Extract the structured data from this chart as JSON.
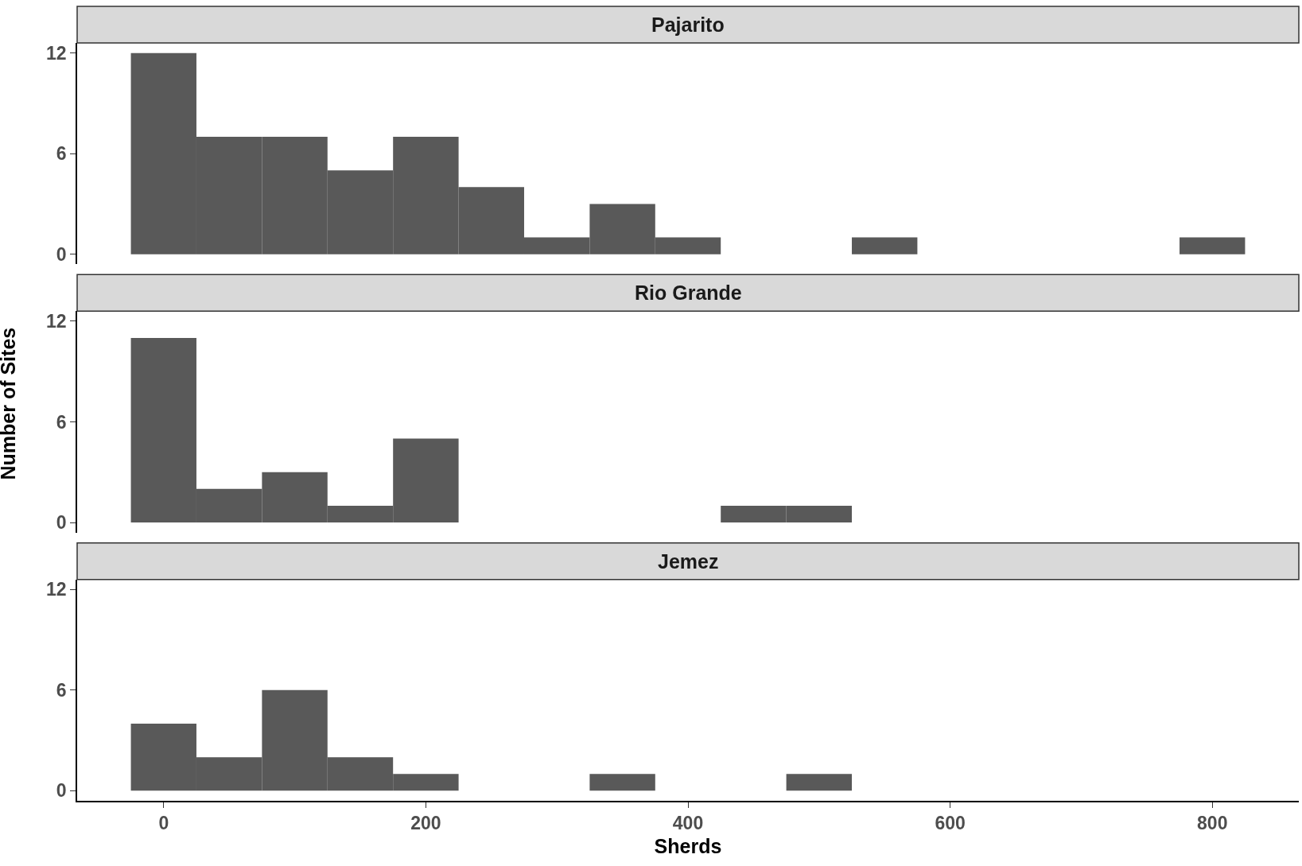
{
  "chart_data": [
    {
      "type": "histogram",
      "title": "Pajarito",
      "bins": [
        -25,
        25,
        75,
        125,
        175,
        225,
        275,
        325,
        375,
        425,
        475,
        525,
        575,
        625,
        675,
        725,
        775,
        825
      ],
      "values": [
        12,
        7,
        7,
        5,
        7,
        4,
        1,
        3,
        1,
        0,
        0,
        1,
        0,
        0,
        0,
        0,
        1
      ],
      "color": "#595959",
      "xlim": [
        -66,
        866
      ],
      "xticks": [
        0,
        200,
        400,
        600,
        800
      ],
      "ylim": [
        -0.6,
        12.6
      ],
      "yticks": [
        0,
        6,
        12
      ],
      "tick_labels": "y",
      "grid": false
    },
    {
      "type": "histogram",
      "title": "Rio Grande",
      "ylabel": "Number of Sites",
      "bins": [
        -25,
        25,
        75,
        125,
        175,
        225,
        275,
        325,
        375,
        425,
        475,
        525,
        575,
        625,
        675,
        725,
        775,
        825
      ],
      "values": [
        11,
        2,
        3,
        1,
        5,
        0,
        0,
        0,
        0,
        1,
        1,
        0,
        0,
        0,
        0,
        0,
        0
      ],
      "color": "#595959",
      "xlim": [
        -66,
        866
      ],
      "xticks": [
        0,
        200,
        400,
        600,
        800
      ],
      "ylim": [
        -0.6,
        12.6
      ],
      "yticks": [
        0,
        6,
        12
      ],
      "tick_labels": "y",
      "grid": false
    },
    {
      "type": "histogram",
      "title": "Jemez",
      "xlabel": "Sherds",
      "bins": [
        -25,
        25,
        75,
        125,
        175,
        225,
        275,
        325,
        375,
        425,
        475,
        525,
        575,
        625,
        675,
        725,
        775,
        825
      ],
      "values": [
        4,
        2,
        6,
        2,
        1,
        0,
        0,
        1,
        0,
        0,
        1,
        0,
        0,
        0,
        0,
        0,
        0
      ],
      "color": "#595959",
      "xlim": [
        -66,
        866
      ],
      "xticks": [
        0,
        200,
        400,
        600,
        800
      ],
      "ylim": [
        -0.6,
        12.6
      ],
      "yticks": [
        0,
        6,
        12
      ],
      "grid": false
    }
  ]
}
